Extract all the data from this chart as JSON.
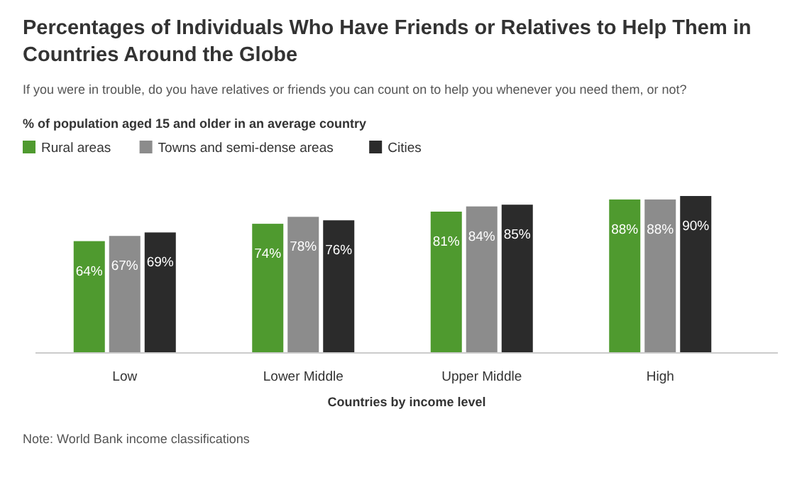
{
  "chart_data": {
    "type": "bar",
    "title": "Percentages of Individuals Who Have Friends or Relatives to Help Them in Countries Around the Globe",
    "subtitle": "If you were in trouble, do you have relatives or friends you can count on to help you whenever you need them, or not?",
    "xlabel": "Countries by income level",
    "categories": [
      "Low",
      "Lower Middle",
      "Upper Middle",
      "High"
    ],
    "legend": "top left",
    "annotations": [
      "% of population aged 15 and older in an average country",
      "Note: World Bank income classifications"
    ],
    "series": [
      {
        "name": "Rural areas",
        "color": "#4f9a2f",
        "values": [
          64,
          74,
          81,
          88
        ],
        "value_labels": [
          "64%",
          "74%",
          "81%",
          "88%"
        ]
      },
      {
        "name": "Towns and semi-dense areas",
        "color": "#8c8c8c",
        "values": [
          67,
          78,
          84,
          88
        ],
        "value_labels": [
          "67%",
          "78%",
          "84%",
          "88%"
        ]
      },
      {
        "name": "Cities",
        "color": "#2b2b2b",
        "values": [
          69,
          76,
          85,
          90
        ],
        "value_labels": [
          "69%",
          "76%",
          "85%",
          "90%"
        ]
      }
    ]
  }
}
